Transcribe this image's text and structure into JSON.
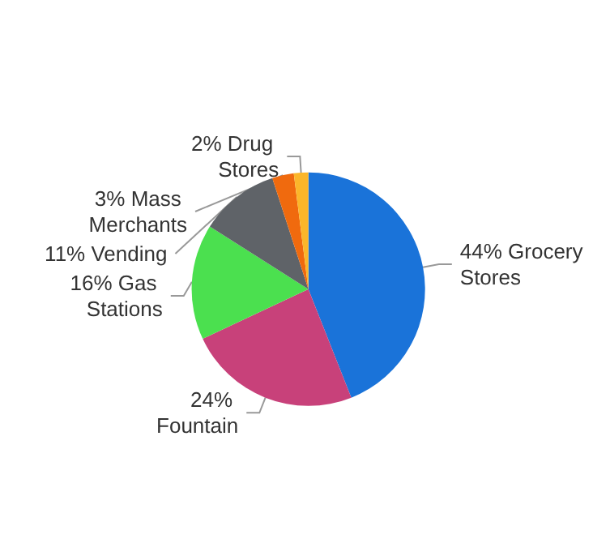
{
  "chart_data": {
    "type": "pie",
    "categories": [
      "Grocery Stores",
      "Fountain",
      "Gas Stations",
      "Vending",
      "Mass Merchants",
      "Drug Stores"
    ],
    "values": [
      44,
      24,
      16,
      11,
      3,
      2
    ],
    "value_labels": [
      "44%",
      "24%",
      "16%",
      "11%",
      "3%",
      "2%"
    ],
    "colors": [
      "#1a73d9",
      "#c8417a",
      "#4be04f",
      "#5f6368",
      "#f06a0e",
      "#fbb62a"
    ],
    "legend": false
  }
}
